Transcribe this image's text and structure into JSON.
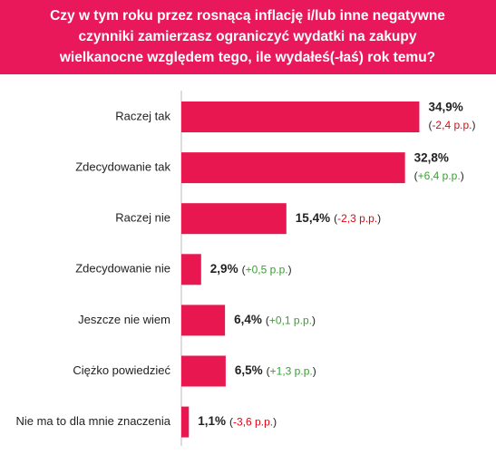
{
  "chart_data": {
    "type": "bar",
    "orientation": "horizontal",
    "title": [
      "Czy w tym roku przez rosnącą inflację i/lub inne negatywne",
      "czynniki zamierzasz ograniczyć wydatki na zakupy",
      "wielkanocne względem tego, ile wydałeś(-łaś) rok temu?"
    ],
    "categories": [
      "Raczej tak",
      "Zdecydowanie tak",
      "Raczej nie",
      "Zdecydowanie nie",
      "Jeszcze nie wiem",
      "Ciężko powiedzieć",
      "Nie ma to dla mnie znaczenia"
    ],
    "values": [
      34.9,
      32.8,
      15.4,
      2.9,
      6.4,
      6.5,
      1.1
    ],
    "value_labels": [
      "34,9%",
      "32,8%",
      "15,4%",
      "2,9%",
      "6,4%",
      "6,5%",
      "1,1%"
    ],
    "changes": [
      -2.4,
      6.4,
      -2.3,
      0.5,
      0.1,
      1.3,
      -3.6
    ],
    "change_labels": [
      "(-2,4 p.p.)",
      "(+6,4 p.p.)",
      "(-2,3 p.p.)",
      "(+0,5 p.p.)",
      "(+0,1 p.p.)",
      "(+1,3 p.p.)",
      "(-3,6 p.p.)"
    ],
    "color": "#e8174f",
    "title_background": "#e8185a",
    "positive_color": "#3a9e33",
    "negative_color": "#e20613"
  }
}
